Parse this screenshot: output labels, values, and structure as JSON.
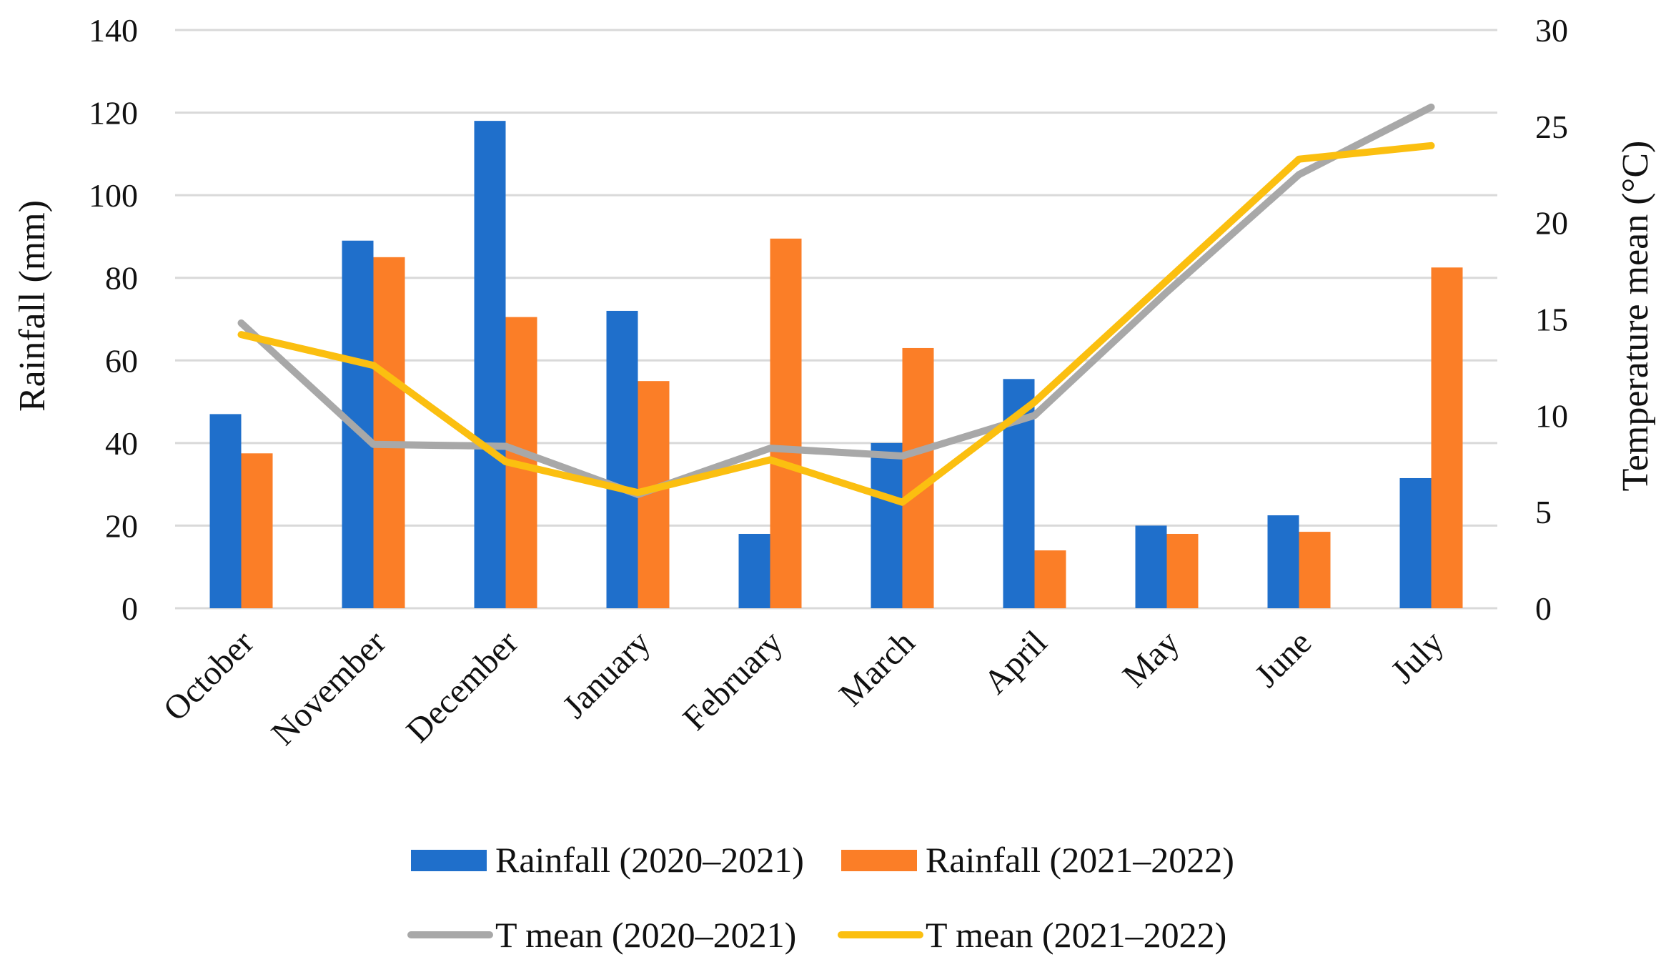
{
  "chart_data": {
    "type": "bar",
    "title": "",
    "categories": [
      "October",
      "November",
      "December",
      "January",
      "February",
      "March",
      "April",
      "May",
      "June",
      "July"
    ],
    "series": [
      {
        "name": "Rainfall (2020–2021)",
        "type": "bar",
        "axis": "left",
        "color": "#1f6fcb",
        "values": [
          47,
          89,
          118,
          72,
          18,
          40,
          55.5,
          20,
          22.5,
          31.5
        ]
      },
      {
        "name": "Rainfall (2021–2022)",
        "type": "bar",
        "axis": "left",
        "color": "#fb7e27",
        "values": [
          37.5,
          85,
          70.5,
          55,
          89.5,
          63,
          14,
          18,
          18.5,
          82.5
        ]
      },
      {
        "name": "T mean (2020–2021)",
        "type": "line",
        "axis": "right",
        "color": "#a8a8a8",
        "values": [
          14.8,
          8.5,
          8.4,
          5.9,
          8.3,
          7.9,
          10,
          16.4,
          22.5,
          26
        ]
      },
      {
        "name": "T mean (2021–2022)",
        "type": "line",
        "axis": "right",
        "color": "#fbbf10",
        "values": [
          14.2,
          12.6,
          7.6,
          6,
          7.7,
          5.5,
          10.7,
          17,
          23.3,
          24
        ]
      }
    ],
    "y_left": {
      "label": "Rainfall (mm)",
      "ylim": [
        0,
        140
      ],
      "ticks": [
        "0",
        "20",
        "40",
        "60",
        "80",
        "100",
        "120",
        "140"
      ]
    },
    "y_right": {
      "label": "Temperature mean (°C)",
      "ylim": [
        0,
        30
      ],
      "ticks": [
        "0",
        "5",
        "10",
        "15",
        "20",
        "25",
        "30"
      ]
    },
    "grid": true,
    "legend_position": "bottom"
  }
}
